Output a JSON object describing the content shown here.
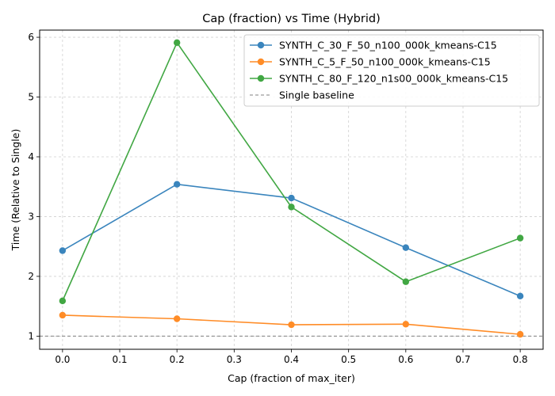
{
  "chart_data": {
    "type": "line",
    "title": "Cap (fraction) vs Time (Hybrid)",
    "xlabel": "Cap (fraction of max_iter)",
    "ylabel": "Time (Relative to Single)",
    "xlim": [
      -0.04,
      0.84
    ],
    "ylim": [
      0.78,
      6.12
    ],
    "xticks": [
      0.0,
      0.1,
      0.2,
      0.3,
      0.4,
      0.5,
      0.6,
      0.7,
      0.8
    ],
    "xtick_labels": [
      "0.0",
      "0.1",
      "0.2",
      "0.3",
      "0.4",
      "0.5",
      "0.6",
      "0.7",
      "0.8"
    ],
    "yticks": [
      1,
      2,
      3,
      4,
      5,
      6
    ],
    "ytick_labels": [
      "1",
      "2",
      "3",
      "4",
      "5",
      "6"
    ],
    "grid": true,
    "legend_position": "top-right",
    "x": [
      0.0,
      0.2,
      0.4,
      0.6,
      0.8
    ],
    "series": [
      {
        "name": "SYNTH_C_30_F_50_n100_000k_kmeans-C15",
        "color": "#3a85bd",
        "marker": "circle",
        "values": [
          2.43,
          3.54,
          3.31,
          2.48,
          1.67
        ]
      },
      {
        "name": "SYNTH_C_5_F_50_n100_000k_kmeans-C15",
        "color": "#ff8c27",
        "marker": "circle",
        "values": [
          1.35,
          1.29,
          1.19,
          1.2,
          1.03
        ]
      },
      {
        "name": "SYNTH_C_80_F_120_n1s00_000k_kmeans-C15",
        "color": "#41a743",
        "marker": "circle",
        "values": [
          1.59,
          5.91,
          3.16,
          1.91,
          2.64
        ]
      }
    ],
    "baseline": {
      "name": "Single baseline",
      "value": 1.0,
      "color": "#808080",
      "style": "dashed"
    }
  }
}
